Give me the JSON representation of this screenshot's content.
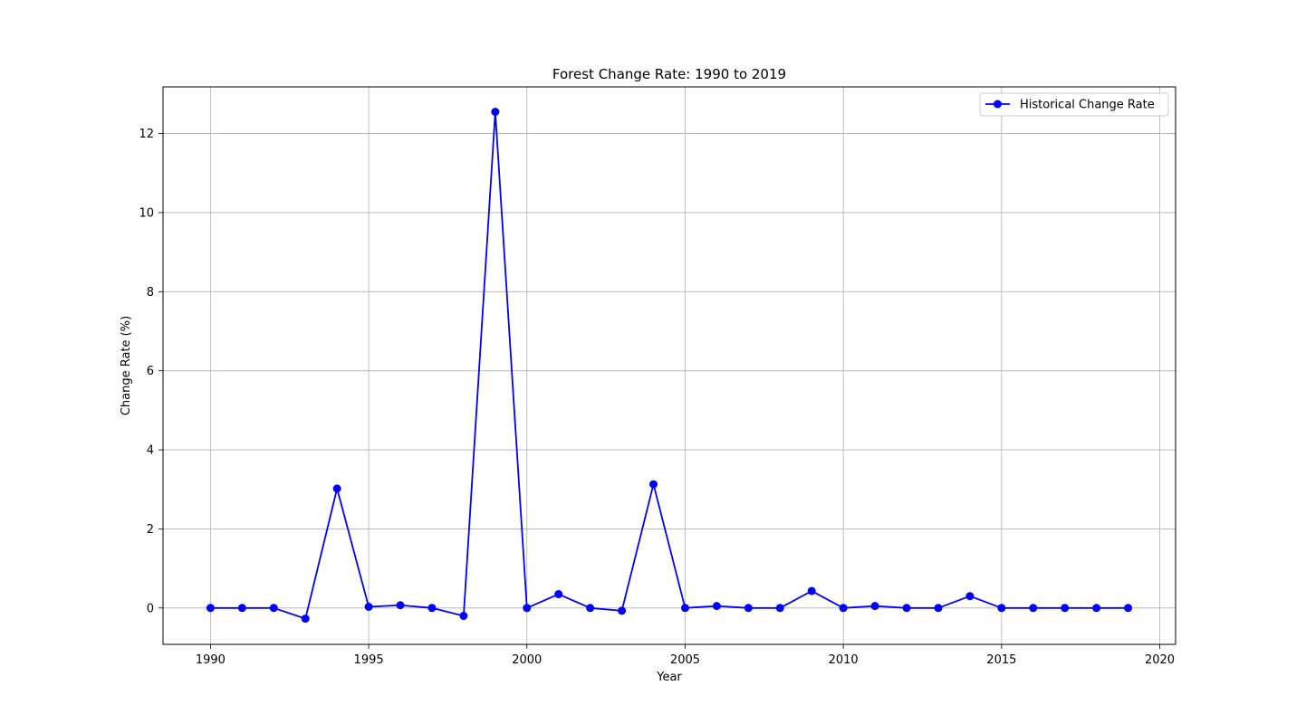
{
  "chart_data": {
    "type": "line",
    "title": "Forest Change Rate: 1990 to 2019",
    "xlabel": "Year",
    "ylabel": "Change Rate (%)",
    "xlim": [
      1988.5,
      2020.5
    ],
    "ylim": [
      -0.92,
      13.18
    ],
    "xticks": [
      1990,
      1995,
      2000,
      2005,
      2010,
      2015,
      2020
    ],
    "yticks": [
      0,
      2,
      4,
      6,
      8,
      10,
      12
    ],
    "grid": true,
    "legend_position": "top-right",
    "series": [
      {
        "name": "Historical Change Rate",
        "color": "#0000ff",
        "marker": "circle",
        "x": [
          1990,
          1991,
          1992,
          1993,
          1994,
          1995,
          1996,
          1997,
          1998,
          1999,
          2000,
          2001,
          2002,
          2003,
          2004,
          2005,
          2006,
          2007,
          2008,
          2009,
          2010,
          2011,
          2012,
          2013,
          2014,
          2015,
          2016,
          2017,
          2018,
          2019
        ],
        "y": [
          0,
          0,
          0,
          -0.27,
          3.02,
          0.03,
          0.07,
          0,
          -0.2,
          12.55,
          0,
          0.35,
          0,
          -0.07,
          3.13,
          0,
          0.05,
          0,
          0,
          0.43,
          0,
          0.05,
          0,
          0,
          0.3,
          0,
          0,
          0,
          0,
          0
        ]
      }
    ]
  }
}
